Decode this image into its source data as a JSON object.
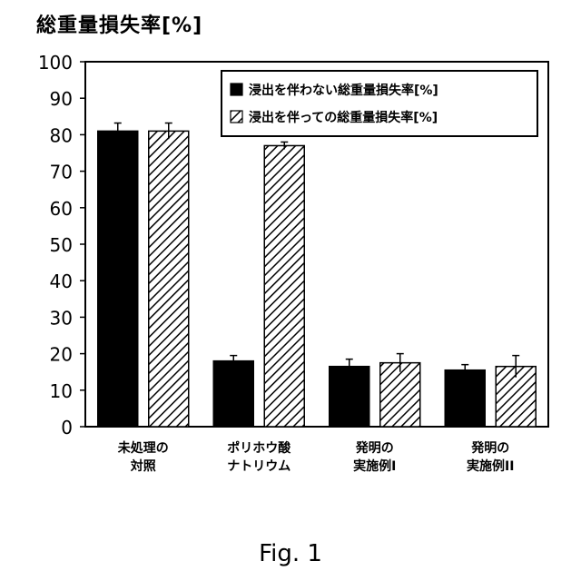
{
  "chart_data": {
    "type": "bar",
    "title": "",
    "ylabel": "総重量損失率[%]",
    "xlabel": "",
    "ylim": [
      0,
      100
    ],
    "yticks": [
      "0",
      "10",
      "20",
      "30",
      "40",
      "50",
      "60",
      "70",
      "80",
      "90",
      "100"
    ],
    "categories": [
      [
        "未処理の",
        "対照"
      ],
      [
        "ポリホウ酸",
        "ナトリウム"
      ],
      [
        "発明の",
        "実施例I"
      ],
      [
        "発明の",
        "実施例II"
      ]
    ],
    "series": [
      {
        "name": "浸出を伴わない総重量損失率[%]",
        "fill": "solid",
        "color": "#000000",
        "values": [
          81,
          18,
          16.5,
          15.5
        ],
        "errors": [
          2.2,
          1.5,
          2.0,
          1.5
        ]
      },
      {
        "name": "浸出を伴っての総重量損失率[%]",
        "fill": "hatched",
        "color": "#000000",
        "values": [
          81,
          77,
          17.5,
          16.5
        ],
        "errors": [
          2.2,
          1.0,
          2.5,
          3.0
        ]
      }
    ],
    "legend_position": "top-right",
    "grid": false
  },
  "figure_caption": "Fig. 1"
}
